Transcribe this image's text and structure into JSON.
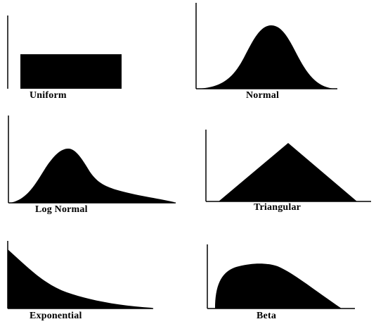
{
  "colors": {
    "fill": "#000000",
    "background": "#ffffff",
    "axis": "#000000"
  },
  "panels": [
    {
      "id": "uniform",
      "label": "Uniform"
    },
    {
      "id": "normal",
      "label": "Normal"
    },
    {
      "id": "lognormal",
      "label": "Log Normal"
    },
    {
      "id": "triangular",
      "label": "Triangular"
    },
    {
      "id": "exponential",
      "label": "Exponential"
    },
    {
      "id": "beta",
      "label": "Beta"
    }
  ]
}
